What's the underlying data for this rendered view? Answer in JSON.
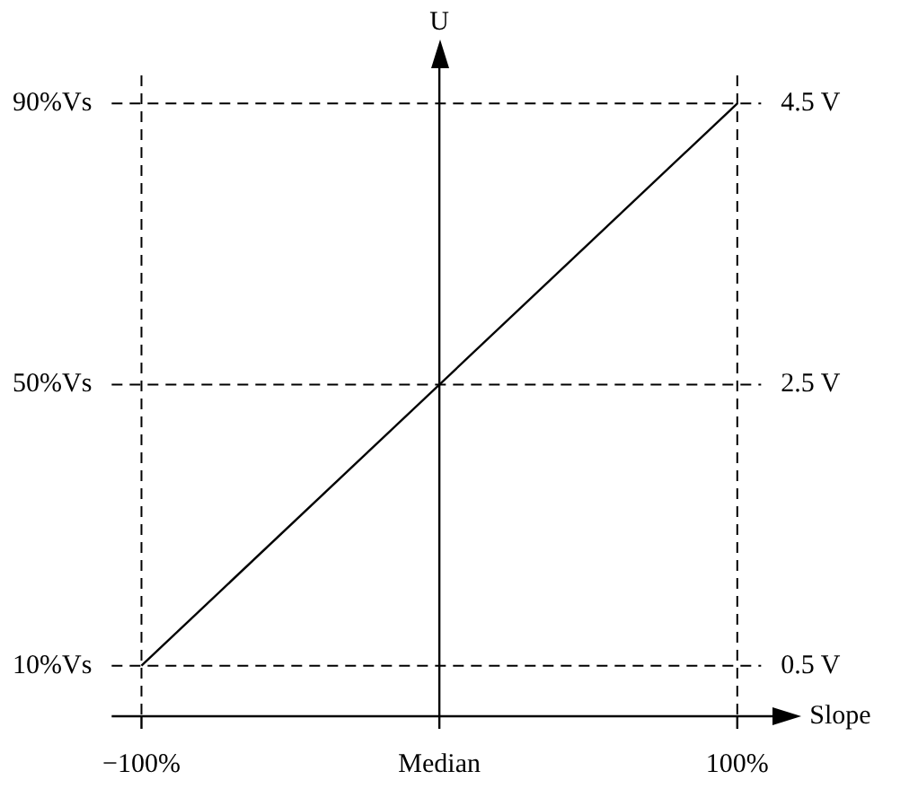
{
  "chart_data": {
    "type": "line",
    "xlabel": "Slope",
    "annotations": [
      "U"
    ],
    "marker": "none",
    "line_style": "solid",
    "legend": false,
    "series": [
      {
        "x": [
          -100,
          100
        ],
        "values": [
          10,
          90
        ],
        "color": "#000000"
      }
    ],
    "xlim": [
      -110,
      108
    ],
    "xticks": [
      {
        "value": -100,
        "label": "−100%"
      },
      {
        "value": 0,
        "label": "Median"
      },
      {
        "value": 100,
        "label": "100%"
      }
    ],
    "ylim": [
      2.8,
      94
    ],
    "yticks": [
      {
        "value": 10,
        "label": "10%Vs"
      },
      {
        "value": 50,
        "label": "50%Vs"
      },
      {
        "value": 90,
        "label": "90%Vs"
      }
    ],
    "y2lim": [
      0.14,
      4.7
    ],
    "y2ticks": [
      {
        "value": 0.5,
        "label": "0.5 V"
      },
      {
        "value": 2.5,
        "label": "2.5 V"
      },
      {
        "value": 4.5,
        "label": "4.5 V"
      }
    ],
    "ref_lines": [
      {
        "axis": "y",
        "value": 10,
        "line_style": "dashed",
        "color": "#000000"
      },
      {
        "axis": "y",
        "value": 50,
        "line_style": "dashed",
        "color": "#000000"
      },
      {
        "axis": "y",
        "value": 90,
        "line_style": "dashed",
        "color": "#000000"
      },
      {
        "axis": "x",
        "value": -100,
        "line_style": "dashed",
        "color": "#000000"
      },
      {
        "axis": "x",
        "value": 100,
        "line_style": "dashed",
        "color": "#000000"
      }
    ]
  }
}
